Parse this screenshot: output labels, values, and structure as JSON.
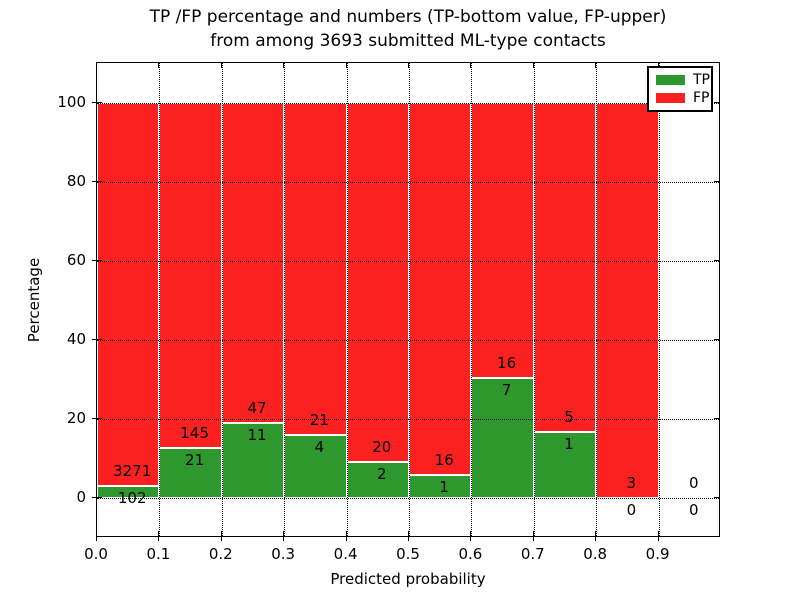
{
  "figure": {
    "title_line1": "TP /FP percentage and numbers (TP-bottom value, FP-upper)",
    "title_line2": "from among 3693 submitted ML-type contacts",
    "total_contacts": 3693
  },
  "chart_data": {
    "type": "bar",
    "stacked": true,
    "title": "TP /FP percentage and numbers (TP-bottom value, FP-upper) from among 3693 submitted ML-type contacts",
    "xlabel": "Predicted probability",
    "ylabel": "Percentage",
    "xlim": [
      0.0,
      1.0
    ],
    "ylim": [
      -10,
      110
    ],
    "grid": "dotted",
    "legend_position": "upper right",
    "x_tick_labels": [
      "0.0",
      "0.1",
      "0.2",
      "0.3",
      "0.4",
      "0.5",
      "0.6",
      "0.7",
      "0.8",
      "0.9"
    ],
    "x_tick_values": [
      0.0,
      0.1,
      0.2,
      0.3,
      0.4,
      0.5,
      0.6,
      0.7,
      0.8,
      0.9
    ],
    "y_tick_values": [
      0,
      20,
      40,
      60,
      80,
      100
    ],
    "description": "Each 0.1-wide bin: green bar height = TP/(TP+FP)*100, red fills remainder to 100%. Counts annotated above (FP) and below (TP) the green/red boundary.",
    "bins": [
      {
        "range": [
          0.0,
          0.1
        ],
        "tp": 102,
        "fp": 3271,
        "tp_pct": 3.02
      },
      {
        "range": [
          0.1,
          0.2
        ],
        "tp": 21,
        "fp": 145,
        "tp_pct": 12.65
      },
      {
        "range": [
          0.2,
          0.3
        ],
        "tp": 11,
        "fp": 47,
        "tp_pct": 18.97
      },
      {
        "range": [
          0.3,
          0.4
        ],
        "tp": 4,
        "fp": 21,
        "tp_pct": 16.0
      },
      {
        "range": [
          0.4,
          0.5
        ],
        "tp": 2,
        "fp": 20,
        "tp_pct": 9.09
      },
      {
        "range": [
          0.5,
          0.6
        ],
        "tp": 1,
        "fp": 16,
        "tp_pct": 5.88
      },
      {
        "range": [
          0.6,
          0.7
        ],
        "tp": 7,
        "fp": 16,
        "tp_pct": 30.43
      },
      {
        "range": [
          0.7,
          0.8
        ],
        "tp": 1,
        "fp": 5,
        "tp_pct": 16.67
      },
      {
        "range": [
          0.8,
          0.9
        ],
        "tp": 0,
        "fp": 3,
        "tp_pct": 0.0
      },
      {
        "range": [
          0.9,
          1.0
        ],
        "tp": 0,
        "fp": 0,
        "tp_pct": 0.0
      }
    ],
    "colors": {
      "tp": "#2e982e",
      "fp": "#fb2121",
      "grid": "#000000",
      "bar_edge": "#ffffff"
    },
    "legend": [
      {
        "label": "TP",
        "key": "tp"
      },
      {
        "label": "FP",
        "key": "fp"
      }
    ]
  }
}
